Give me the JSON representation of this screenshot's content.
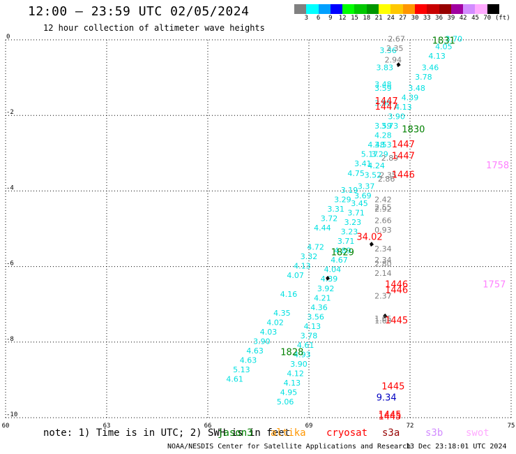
{
  "header": {
    "title": "12:00 – 23:59 UTC 02/05/2024",
    "subtitle": "12 hour collection of altimeter wave heights"
  },
  "legend": {
    "unit": "(ft)",
    "colors": [
      "#808080",
      "#00ffff",
      "#00a0ff",
      "#0000ff",
      "#00ff00",
      "#00c800",
      "#009600",
      "#ffff00",
      "#ffc800",
      "#ff9600",
      "#ff0000",
      "#c80000",
      "#960000",
      "#a000a0",
      "#d28cff",
      "#ffaaff",
      "#000000"
    ],
    "labels": [
      "3",
      "6",
      "9",
      "12",
      "15",
      "18",
      "21",
      "24",
      "27",
      "30",
      "33",
      "36",
      "39",
      "42",
      "45",
      "70"
    ]
  },
  "axes": {
    "x_ticks": [
      "60",
      "63",
      "66",
      "69",
      "72",
      "75"
    ],
    "y_ticks": [
      "0",
      "-2",
      "-4",
      "-6",
      "-8",
      "-10"
    ],
    "xlim": [
      60,
      75
    ],
    "ylim": [
      -10,
      0
    ]
  },
  "chart_data": {
    "type": "scatter",
    "units": "ft",
    "tracks": [
      {
        "color": "#00e0e0",
        "points": [
          {
            "lon": 73.3,
            "lat": -0.05,
            "v": "3.70"
          },
          {
            "lon": 73.0,
            "lat": -0.25,
            "v": "4.05"
          },
          {
            "lon": 72.8,
            "lat": -0.5,
            "v": "4.13"
          },
          {
            "lon": 72.6,
            "lat": -0.8,
            "v": "3.46"
          },
          {
            "lon": 72.4,
            "lat": -1.05,
            "v": "3.78"
          },
          {
            "lon": 72.2,
            "lat": -1.35,
            "v": "3.48"
          },
          {
            "lon": 72.0,
            "lat": -1.6,
            "v": "4.39"
          },
          {
            "lon": 71.8,
            "lat": -1.85,
            "v": "4.13"
          },
          {
            "lon": 71.6,
            "lat": -2.1,
            "v": "3.90"
          },
          {
            "lon": 71.4,
            "lat": -2.35,
            "v": "3.73"
          },
          {
            "lon": 71.2,
            "lat": -2.6,
            "v": "4.28"
          },
          {
            "lon": 71.0,
            "lat": -2.85,
            "v": "4.48"
          },
          {
            "lon": 70.8,
            "lat": -3.1,
            "v": "5.17"
          },
          {
            "lon": 70.6,
            "lat": -3.35,
            "v": "3.41"
          },
          {
            "lon": 70.4,
            "lat": -3.6,
            "v": "4.75"
          },
          {
            "lon": 70.2,
            "lat": -4.05,
            "v": "3.19"
          },
          {
            "lon": 70.0,
            "lat": -4.3,
            "v": "3.29"
          },
          {
            "lon": 69.8,
            "lat": -4.55,
            "v": "3.31"
          },
          {
            "lon": 69.6,
            "lat": -4.8,
            "v": "3.72"
          },
          {
            "lon": 69.4,
            "lat": -5.05,
            "v": "4.44"
          },
          {
            "lon": 69.2,
            "lat": -5.55,
            "v": "4.72"
          },
          {
            "lon": 69.0,
            "lat": -5.8,
            "v": "3.32"
          },
          {
            "lon": 68.8,
            "lat": -6.05,
            "v": "4.13"
          },
          {
            "lon": 68.6,
            "lat": -6.3,
            "v": "4.07"
          },
          {
            "lon": 68.4,
            "lat": -6.8,
            "v": "4.16"
          },
          {
            "lon": 68.2,
            "lat": -7.3,
            "v": "4.35"
          },
          {
            "lon": 68.0,
            "lat": -7.55,
            "v": "4.02"
          },
          {
            "lon": 67.8,
            "lat": -7.8,
            "v": "4.03"
          },
          {
            "lon": 67.6,
            "lat": -8.05,
            "v": "3.90"
          },
          {
            "lon": 67.4,
            "lat": -8.3,
            "v": "4.63"
          },
          {
            "lon": 67.2,
            "lat": -8.55,
            "v": "4.63"
          },
          {
            "lon": 67.0,
            "lat": -8.8,
            "v": "5.13"
          },
          {
            "lon": 66.8,
            "lat": -9.05,
            "v": "4.61"
          }
        ]
      },
      {
        "color": "#00e0e0",
        "points": [
          {
            "lon": 71.35,
            "lat": -0.35,
            "v": "3.36"
          },
          {
            "lon": 71.25,
            "lat": -0.8,
            "v": "3.83"
          },
          {
            "lon": 71.2,
            "lat": -1.25,
            "v": "3.48"
          },
          {
            "lon": 71.2,
            "lat": -1.35,
            "v": "3.59"
          },
          {
            "lon": 71.2,
            "lat": -1.75,
            "v": "3.90"
          },
          {
            "lon": 71.2,
            "lat": -2.35,
            "v": "3.59"
          },
          {
            "lon": 71.2,
            "lat": -2.85,
            "v": "3.53"
          },
          {
            "lon": 71.1,
            "lat": -3.1,
            "v": "3.29"
          },
          {
            "lon": 71.0,
            "lat": -3.4,
            "v": "4.24"
          },
          {
            "lon": 70.9,
            "lat": -3.65,
            "v": "3.52"
          },
          {
            "lon": 70.7,
            "lat": -3.95,
            "v": "3.37"
          },
          {
            "lon": 70.6,
            "lat": -4.2,
            "v": "3.69"
          },
          {
            "lon": 70.5,
            "lat": -4.4,
            "v": "3.45"
          },
          {
            "lon": 70.4,
            "lat": -4.65,
            "v": "3.71"
          },
          {
            "lon": 70.3,
            "lat": -4.9,
            "v": "3.23"
          },
          {
            "lon": 70.2,
            "lat": -5.15,
            "v": "3.23"
          },
          {
            "lon": 70.1,
            "lat": -5.4,
            "v": "3.71"
          },
          {
            "lon": 70.0,
            "lat": -5.65,
            "v": "4.89"
          },
          {
            "lon": 69.9,
            "lat": -5.9,
            "v": "4.67"
          },
          {
            "lon": 69.7,
            "lat": -6.15,
            "v": "4.04"
          },
          {
            "lon": 69.6,
            "lat": -6.4,
            "v": "4.39"
          },
          {
            "lon": 69.5,
            "lat": -6.65,
            "v": "3.92"
          },
          {
            "lon": 69.4,
            "lat": -6.9,
            "v": "4.21"
          },
          {
            "lon": 69.3,
            "lat": -7.15,
            "v": "4.36"
          },
          {
            "lon": 69.2,
            "lat": -7.4,
            "v": "3.56"
          },
          {
            "lon": 69.1,
            "lat": -7.65,
            "v": "4.13"
          },
          {
            "lon": 69.0,
            "lat": -7.9,
            "v": "3.78"
          },
          {
            "lon": 68.9,
            "lat": -8.15,
            "v": "4.61"
          },
          {
            "lon": 68.8,
            "lat": -8.4,
            "v": "4.93"
          },
          {
            "lon": 68.7,
            "lat": -8.65,
            "v": "3.90"
          },
          {
            "lon": 68.6,
            "lat": -8.9,
            "v": "4.12"
          },
          {
            "lon": 68.5,
            "lat": -9.15,
            "v": "4.13"
          },
          {
            "lon": 68.4,
            "lat": -9.4,
            "v": "4.95"
          },
          {
            "lon": 68.3,
            "lat": -9.65,
            "v": "5.06"
          }
        ]
      },
      {
        "color": "#808080",
        "points": [
          {
            "lon": 71.6,
            "lat": -0.05,
            "v": "2.67"
          },
          {
            "lon": 71.55,
            "lat": -0.3,
            "v": "2.35"
          },
          {
            "lon": 71.5,
            "lat": -0.6,
            "v": "2.94"
          },
          {
            "lon": 71.4,
            "lat": -3.2,
            "v": "2.89"
          },
          {
            "lon": 71.35,
            "lat": -3.65,
            "v": "2.35"
          },
          {
            "lon": 71.3,
            "lat": -3.75,
            "v": "2.86"
          },
          {
            "lon": 71.2,
            "lat": -4.3,
            "v": "2.42"
          },
          {
            "lon": 71.2,
            "lat": -4.5,
            "v": "2.55"
          },
          {
            "lon": 71.2,
            "lat": -4.55,
            "v": "2.92"
          },
          {
            "lon": 71.2,
            "lat": -4.85,
            "v": "2.66"
          },
          {
            "lon": 71.2,
            "lat": -5.1,
            "v": "0.93"
          },
          {
            "lon": 71.2,
            "lat": -5.6,
            "v": "2.34"
          },
          {
            "lon": 71.2,
            "lat": -5.9,
            "v": "2.34"
          },
          {
            "lon": 71.2,
            "lat": -6.0,
            "v": "2.80"
          },
          {
            "lon": 71.2,
            "lat": -6.25,
            "v": "2.14"
          },
          {
            "lon": 71.2,
            "lat": -6.85,
            "v": "2.37"
          },
          {
            "lon": 71.2,
            "lat": -7.45,
            "v": "1.65"
          },
          {
            "lon": 71.2,
            "lat": -7.5,
            "v": "1.65"
          }
        ]
      }
    ],
    "buoys": [
      {
        "id": "1831",
        "color": "#008000"
      },
      {
        "id": "1447",
        "color": "#ff0000"
      },
      {
        "id": "1447",
        "color": "#ff0000"
      },
      {
        "id": "1830",
        "color": "#008000"
      },
      {
        "id": "1447",
        "color": "#ff0000"
      },
      {
        "id": "1447",
        "color": "#ff0000"
      },
      {
        "id": "1758",
        "color": "#ff80ff"
      },
      {
        "id": "1446",
        "color": "#ff0000"
      },
      {
        "id": "34.02",
        "color": "#ff0000"
      },
      {
        "id": "1829",
        "color": "#008000"
      },
      {
        "id": "1446",
        "color": "#ff0000"
      },
      {
        "id": "1446",
        "color": "#ff0000"
      },
      {
        "id": "1757",
        "color": "#ff80ff"
      },
      {
        "id": "1445",
        "color": "#ff0000"
      },
      {
        "id": "1828",
        "color": "#008000"
      },
      {
        "id": "1445",
        "color": "#ff0000"
      },
      {
        "id": "1445",
        "color": "#ff0000"
      },
      {
        "id": "1445",
        "color": "#ff0000"
      },
      {
        "id": "9.34",
        "color": "#0000c0"
      }
    ]
  },
  "notes": {
    "text": "note: 1) Time is in UTC; 2) SWH is in feet",
    "satellites": [
      {
        "name": "jason3",
        "color": "#008000"
      },
      {
        "name": "altika",
        "color": "#ff9600"
      },
      {
        "name": "cryosat",
        "color": "#ff0000"
      },
      {
        "name": "s3a",
        "color": "#960000"
      },
      {
        "name": "s3b",
        "color": "#d28cff"
      },
      {
        "name": "swot",
        "color": "#ffaaff"
      }
    ]
  },
  "footer": {
    "credit": "NOAA/NESDIS Center for Satellite Applications and Research",
    "date": "13 Dec 23:18:01 UTC 2024"
  }
}
